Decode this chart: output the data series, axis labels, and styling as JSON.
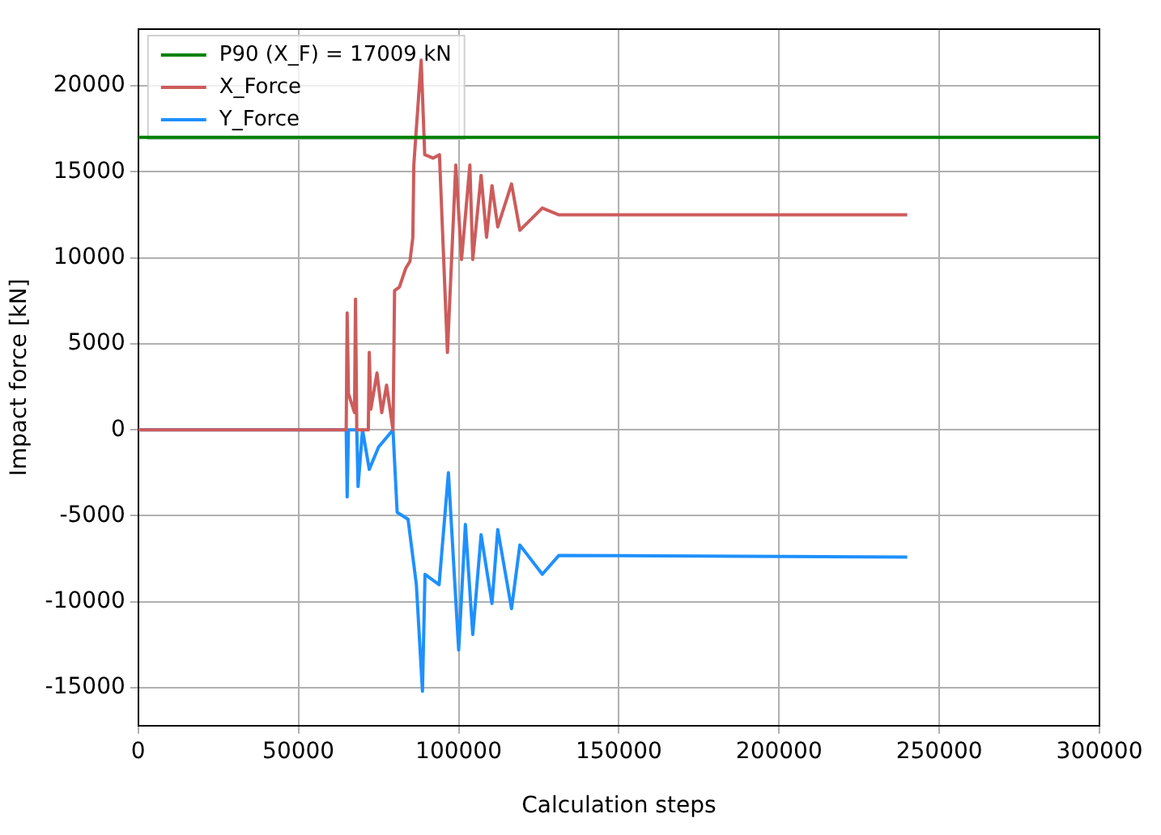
{
  "chart_data": {
    "type": "line",
    "xlabel": "Calculation steps",
    "ylabel": "Impact force [kN]",
    "xlim": [
      0,
      300000
    ],
    "xticks": [
      0,
      50000,
      100000,
      150000,
      200000,
      250000,
      300000
    ],
    "ylim": [
      -17200,
      23300
    ],
    "yticks": [
      -15000,
      -10000,
      -5000,
      0,
      5000,
      10000,
      15000,
      20000
    ],
    "grid": true,
    "legend": "top left",
    "marker": "none",
    "line_style": "solid",
    "series": [
      {
        "name": "P90 (X_F) = 17009 kN",
        "color": "#008000",
        "x": [
          0,
          300000
        ],
        "values": [
          17009,
          17009
        ]
      },
      {
        "name": "X_Force",
        "color": "#cd5c5c",
        "x": [
          0,
          64900,
          65200,
          65600,
          67500,
          67800,
          68200,
          69000,
          71800,
          72100,
          72600,
          74500,
          76000,
          77500,
          79500,
          80000,
          81500,
          83500,
          84800,
          85700,
          86000,
          88300,
          89400,
          92000,
          94000,
          96500,
          99100,
          100900,
          103500,
          104400,
          107000,
          108700,
          110400,
          112200,
          116500,
          119100,
          126100,
          131300,
          240000
        ],
        "values": [
          0,
          0,
          6800,
          2100,
          1000,
          7600,
          0,
          0,
          0,
          4500,
          1200,
          3300,
          1000,
          2600,
          0,
          8100,
          8300,
          9400,
          9800,
          11200,
          15400,
          21500,
          16000,
          15800,
          16000,
          4500,
          15400,
          9900,
          15400,
          9900,
          14800,
          11200,
          14200,
          11800,
          14300,
          11600,
          12900,
          12500,
          12500
        ]
      },
      {
        "name": "Y_Force",
        "color": "#1e90ff",
        "x": [
          0,
          64900,
          65200,
          65600,
          68200,
          68600,
          70000,
          72100,
          75000,
          79500,
          80800,
          84200,
          86800,
          88700,
          89500,
          93900,
          96800,
          100000,
          102100,
          104400,
          107000,
          110400,
          112200,
          116500,
          119100,
          126100,
          131300,
          240000
        ],
        "values": [
          0,
          0,
          -3900,
          0,
          0,
          -3300,
          0,
          -2300,
          -1000,
          0,
          -4800,
          -5200,
          -9000,
          -15200,
          -8400,
          -9000,
          -2500,
          -12800,
          -5500,
          -11900,
          -6100,
          -10100,
          -5800,
          -10400,
          -6700,
          -8400,
          -7300,
          -7400
        ]
      }
    ]
  }
}
